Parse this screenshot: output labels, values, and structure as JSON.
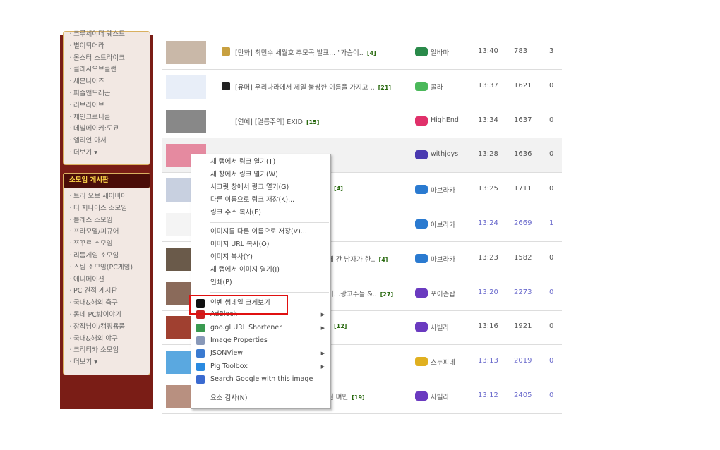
{
  "sidebar": {
    "panel1": {
      "items": [
        "크루세이더 퀘스트",
        "별이되어라",
        "몬스터 스트라이크",
        "클래시오브클랜",
        "세븐나이츠",
        "퍼즐앤드래곤",
        "러브라이브",
        "체인크로니클",
        "데빌메이커:도쿄",
        "엘리언 아서",
        "더보기 ▾"
      ]
    },
    "panel2": {
      "title": "소모임 게시판",
      "items": [
        "트리 오브 세이비어",
        "더 지니어스 소모임",
        "블레스 소모임",
        "프라모델/피규어",
        "쯔꾸르 소모임",
        "리듬게임 소모임",
        "스팀 소모임(PC게임)",
        "애니메이션",
        "PC 견적 게시판",
        "국내&해외 축구",
        "동네 PC방이야기",
        "장작님이/캠핑용품",
        "국내&해외 야구",
        "크리티카 소모임",
        "더보기 ▾"
      ]
    }
  },
  "rows": [
    {
      "title": "[만화] 최민수 세월호 추모곡 발표... \"가슴이..",
      "count": "[4]",
      "nick": "알바마",
      "level_color": "#2a8a4a",
      "time": "13:40",
      "views": "783",
      "comments": "3"
    },
    {
      "title": "[유머] 우리나라에서 제일 불쌍한 이름을 가지고 ..",
      "count": "[21]",
      "nick": "콜라",
      "level_color": "#4ab85a",
      "time": "13:37",
      "views": "1621",
      "comments": "0"
    },
    {
      "title": "[연예] [얼름주의] EXID",
      "count": "[15]",
      "nick": "HighEnd",
      "level_color": "#e0306a",
      "time": "13:34",
      "views": "1637",
      "comments": "0"
    },
    {
      "title": "",
      "count": "",
      "nick": "withjoys",
      "level_color": "#4a3ab0",
      "time": "13:28",
      "views": "1636",
      "comments": "0"
    },
    {
      "title": "",
      "count": "[4]",
      "nick": "마브라카",
      "level_color": "#2a7ad0",
      "time": "13:25",
      "views": "1711",
      "comments": "0"
    },
    {
      "title": "",
      "count": "",
      "nick": "아브라카",
      "level_color": "#2a7ad0",
      "time": "13:24",
      "views": "2669",
      "comments": "1"
    },
    {
      "title": "에 간 남자가 한..",
      "count": "[4]",
      "nick": "마브라카",
      "level_color": "#2a7ad0",
      "time": "13:23",
      "views": "1582",
      "comments": "0"
    },
    {
      "title": "기…광고주들 &..",
      "count": "[27]",
      "nick": "포이즌탑",
      "level_color": "#6a3ac0",
      "time": "13:20",
      "views": "2273",
      "comments": "0"
    },
    {
      "title": "",
      "count": "[12]",
      "nick": "사빌라",
      "level_color": "#6a3ac0",
      "time": "13:16",
      "views": "1921",
      "comments": "0"
    },
    {
      "title": "",
      "count": "",
      "nick": "스누피네",
      "level_color": "#e0b020",
      "time": "13:13",
      "views": "2019",
      "comments": "0"
    },
    {
      "title": "된 며민",
      "count": "[19]",
      "nick": "사빌라",
      "level_color": "#6a3ac0",
      "time": "13:12",
      "views": "2405",
      "comments": "0"
    }
  ],
  "menu": {
    "group1": [
      "새 탭에서 링크 열기(T)",
      "새 창에서 링크 열기(W)",
      "시크릿 창에서 링크 열기(G)",
      "다른 이름으로 링크 저장(K)...",
      "링크 주소 복사(E)"
    ],
    "group2": [
      "이미지를 다른 이름으로 저장(V)...",
      "이미지 URL 복사(O)",
      "이미지 복사(Y)",
      "새 탭에서 이미지 열기(I)",
      "인쇄(P)"
    ],
    "group3": [
      "인벤 썸네일 크게보기",
      "AdBlock",
      "goo.gl URL Shortener",
      "Image Properties",
      "JSONView",
      "Pig Toolbox",
      "Search Google with this image"
    ],
    "group4": [
      "요소 검사(N)"
    ]
  }
}
